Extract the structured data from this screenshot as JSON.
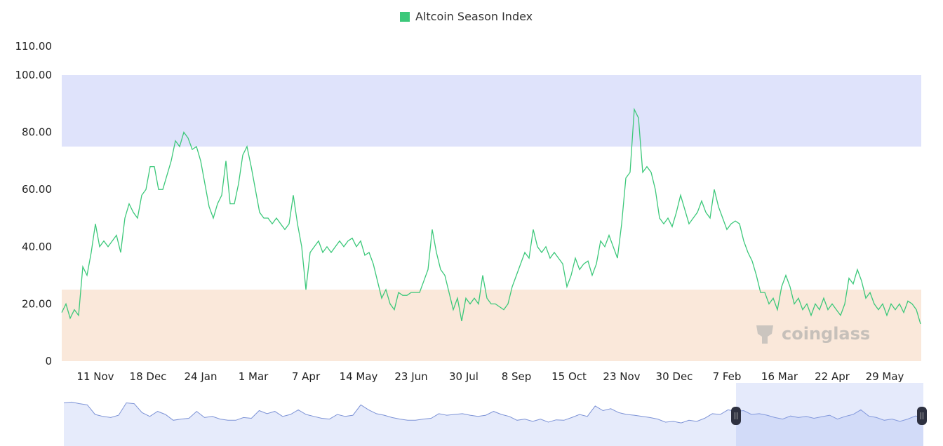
{
  "chart_data": {
    "type": "line",
    "title": "",
    "legend": {
      "position": "top",
      "entries": [
        "Altcoin Season Index"
      ]
    },
    "series": [
      {
        "name": "Altcoin Season Index",
        "color": "#3cc87a",
        "values": [
          17,
          20,
          15,
          18,
          16,
          33,
          30,
          38,
          48,
          40,
          42,
          40,
          42,
          44,
          38,
          50,
          55,
          52,
          50,
          58,
          60,
          68,
          68,
          60,
          60,
          65,
          70,
          77,
          75,
          80,
          78,
          74,
          75,
          70,
          62,
          54,
          50,
          55,
          58,
          70,
          55,
          55,
          62,
          72,
          75,
          68,
          60,
          52,
          50,
          50,
          48,
          50,
          48,
          46,
          48,
          58,
          48,
          40,
          25,
          38,
          40,
          42,
          38,
          40,
          38,
          40,
          42,
          40,
          42,
          43,
          40,
          42,
          37,
          38,
          34,
          28,
          22,
          25,
          20,
          18,
          24,
          23,
          23,
          24,
          24,
          24,
          28,
          32,
          46,
          38,
          32,
          30,
          24,
          18,
          22,
          14,
          22,
          20,
          22,
          20,
          30,
          22,
          20,
          20,
          19,
          18,
          20,
          26,
          30,
          34,
          38,
          36,
          46,
          40,
          38,
          40,
          36,
          38,
          36,
          34,
          26,
          30,
          36,
          32,
          34,
          35,
          30,
          34,
          42,
          40,
          44,
          40,
          36,
          48,
          64,
          66,
          88,
          85,
          66,
          68,
          66,
          60,
          50,
          48,
          50,
          47,
          52,
          58,
          53,
          48,
          50,
          52,
          56,
          52,
          50,
          60,
          54,
          50,
          46,
          48,
          49,
          48,
          42,
          38,
          35,
          30,
          24,
          24,
          20,
          22,
          18,
          26,
          30,
          26,
          20,
          22,
          18,
          20,
          16,
          20,
          18,
          22,
          18,
          20,
          18,
          16,
          20,
          29,
          27,
          32,
          28,
          22,
          24,
          20,
          18,
          20,
          16,
          20,
          18,
          20,
          17,
          21,
          20,
          18,
          13
        ]
      }
    ],
    "x_tick_labels": [
      "11 Nov",
      "18 Dec",
      "24 Jan",
      "1 Mar",
      "7 Apr",
      "14 May",
      "23 Jun",
      "30 Jul",
      "8 Sep",
      "15 Oct",
      "23 Nov",
      "30 Dec",
      "7 Feb",
      "16 Mar",
      "22 Apr",
      "29 May"
    ],
    "y_tick_labels": [
      "0",
      "20.00",
      "40.00",
      "60.00",
      "80.00",
      "100.00",
      "110.00"
    ],
    "y_ticks": [
      0,
      20,
      40,
      60,
      80,
      100,
      110
    ],
    "ylim": [
      0,
      110
    ],
    "bands": [
      {
        "from": 75,
        "to": 100,
        "color": "#dfe3fb"
      },
      {
        "from": 0,
        "to": 25,
        "color": "#fae8da"
      }
    ],
    "grid": false,
    "navigator": {
      "values": [
        90,
        92,
        88,
        85,
        60,
        55,
        52,
        58,
        90,
        88,
        65,
        55,
        68,
        60,
        45,
        48,
        50,
        68,
        52,
        55,
        48,
        45,
        45,
        52,
        50,
        70,
        62,
        68,
        55,
        60,
        72,
        60,
        55,
        50,
        48,
        60,
        55,
        58,
        85,
        72,
        62,
        58,
        52,
        48,
        45,
        45,
        48,
        50,
        62,
        58,
        60,
        62,
        58,
        55,
        58,
        68,
        60,
        55,
        45,
        48,
        42,
        48,
        40,
        46,
        45,
        52,
        60,
        55,
        82,
        70,
        75,
        65,
        60,
        58,
        55,
        52,
        48,
        40,
        42,
        38,
        45,
        42,
        50,
        62,
        60,
        72,
        68,
        70,
        60,
        62,
        58,
        52,
        48,
        56,
        52,
        55,
        50,
        54,
        58,
        48,
        55,
        60,
        72,
        56,
        52,
        45,
        48,
        42,
        48,
        56,
        52
      ],
      "selection": {
        "start_fraction": 0.8,
        "end_fraction": 1.0
      }
    },
    "watermark": "coinglass"
  }
}
